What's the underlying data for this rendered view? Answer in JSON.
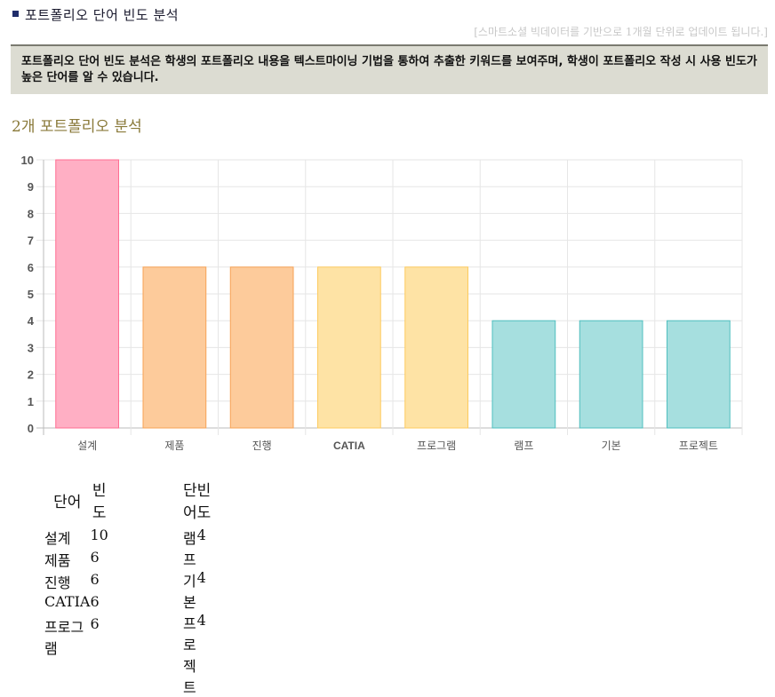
{
  "header": {
    "title": "포트폴리오 단어 빈도 분석",
    "notice": "[스마트소셜 빅데이터를 기반으로 1개월 단위로 업데이트 됩니다.]",
    "description": "포트폴리오 단어 빈도 분석은 학생의 포트폴리오 내용을 텍스트마이닝 기법을 통하여 추출한 키워드를 보여주며, 학생이 포트폴리오 작성 시 사용 빈도가 높은 단어를 알 수 있습니다."
  },
  "section": {
    "title": "2개 포트폴리오 분석"
  },
  "chart_data": {
    "type": "bar",
    "categories": [
      "설계",
      "제품",
      "진행",
      "CATIA",
      "프로그램",
      "램프",
      "기본",
      "프로젝트"
    ],
    "values": [
      10,
      6,
      6,
      6,
      6,
      4,
      4,
      4
    ],
    "ylim": [
      0,
      10
    ],
    "yticks": [
      0,
      1,
      2,
      3,
      4,
      5,
      6,
      7,
      8,
      9,
      10
    ],
    "grid": true,
    "colors": [
      {
        "fill": "#ffafc4",
        "stroke": "#ff6e92"
      },
      {
        "fill": "#fdcb9b",
        "stroke": "#f7a356"
      },
      {
        "fill": "#fdcb9b",
        "stroke": "#f7a356"
      },
      {
        "fill": "#fee3a5",
        "stroke": "#fdcb5e"
      },
      {
        "fill": "#fee3a5",
        "stroke": "#fdcb5e"
      },
      {
        "fill": "#a6dfdf",
        "stroke": "#4fbfbf"
      },
      {
        "fill": "#a6dfdf",
        "stroke": "#4fbfbf"
      },
      {
        "fill": "#a6dfdf",
        "stroke": "#4fbfbf"
      }
    ]
  },
  "tables": {
    "headers": {
      "word": "단어",
      "freq": "빈도"
    },
    "left": [
      {
        "word": "설계",
        "freq": "10"
      },
      {
        "word": "제품",
        "freq": "6"
      },
      {
        "word": "진행",
        "freq": "6"
      },
      {
        "word": "CATIA",
        "freq": "6"
      },
      {
        "word": "프로그램",
        "freq": "6"
      }
    ],
    "right": [
      {
        "word": "램프",
        "freq": "4"
      },
      {
        "word": "기본",
        "freq": "4"
      },
      {
        "word": "프로젝트",
        "freq": "4"
      }
    ]
  }
}
